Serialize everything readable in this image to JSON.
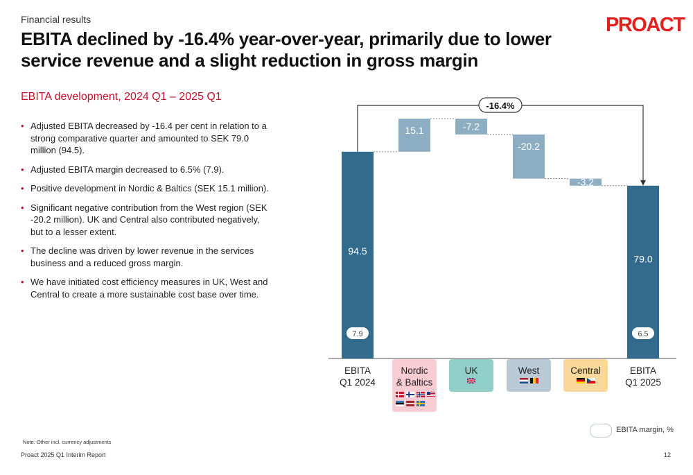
{
  "header": {
    "kicker": "Financial results",
    "title": "EBITA declined by -16.4% year-over-year, primarily due to lower service revenue and a slight reduction in gross margin",
    "logo": "PROACT",
    "subtitle": "EBITA development, 2024 Q1 – 2025 Q1"
  },
  "bullets": [
    "Adjusted EBITA decreased by -16.4 per cent in relation to a strong comparative quarter and amounted to SEK 79.0 million (94.5).",
    "Adjusted EBITA margin decreased to 6.5% (7.9).",
    "Positive development in Nordic & Baltics (SEK 15.1 million).",
    "Significant negative contribution from the West region (SEK -20.2 million). UK and Central also contributed negatively, but to a lesser extent.",
    "The decline was driven by lower revenue in the services business and a reduced gross margin.",
    "We have initiated cost efficiency measures in UK, West and Central to create a more sustainable cost base over time."
  ],
  "footer": {
    "note": "Note: Other incl. currency adjustments",
    "report": "Proact 2025 Q1 Interim Report",
    "page": "12"
  },
  "legend": {
    "margin_label": "EBITA margin, %"
  },
  "chart_data": {
    "type": "bar",
    "subtype": "waterfall",
    "categories": [
      "EBITA Q1 2024",
      "Nordic & Baltics",
      "UK",
      "West",
      "Central",
      "EBITA Q1 2025"
    ],
    "values": [
      94.5,
      15.1,
      -7.2,
      -20.2,
      -3.2,
      79.0
    ],
    "value_labels": [
      "94.5",
      "15.1",
      "-7.2",
      "-20.2",
      "-3.2",
      "79.0"
    ],
    "kinds": [
      "total",
      "delta",
      "delta",
      "delta",
      "delta",
      "total"
    ],
    "margins": {
      "EBITA Q1 2024": "7.9",
      "EBITA Q1 2025": "6.5"
    },
    "change_annotation": "-16.4%",
    "category_labels": [
      [
        "EBITA",
        "Q1 2024"
      ],
      [
        "Nordic",
        "& Baltics"
      ],
      [
        "UK"
      ],
      [
        "West"
      ],
      [
        "Central"
      ],
      [
        "EBITA",
        "Q1 2025"
      ]
    ],
    "flags": {
      "Nordic & Baltics": [
        "denmark",
        "finland",
        "norway",
        "usa",
        "estonia",
        "latvia",
        "sweden"
      ],
      "UK": [
        "uk"
      ],
      "West": [
        "netherlands",
        "belgium"
      ],
      "Central": [
        "germany",
        "czech"
      ]
    },
    "colors": {
      "total": "#336b8c",
      "delta": "#8daec2",
      "accent_red": "#c8102e",
      "Nordic & Baltics": "#f7cdd3",
      "UK": "#8fcfc7",
      "West": "#b9c9d6",
      "Central": "#f9d89a"
    }
  }
}
